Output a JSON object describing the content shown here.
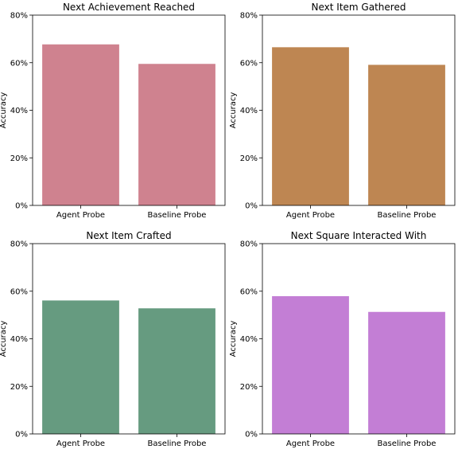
{
  "chart_data": [
    {
      "type": "bar",
      "title": "Next Achievement Reached",
      "ylabel": "Accuracy",
      "categories": [
        "Agent Probe",
        "Baseline Probe"
      ],
      "values": [
        67.7,
        59.5
      ],
      "ylim": [
        0,
        80
      ],
      "yticks": [
        "0%",
        "20%",
        "40%",
        "60%",
        "80%"
      ],
      "color": "#cf828f"
    },
    {
      "type": "bar",
      "title": "Next Item Gathered",
      "ylabel": "Accuracy",
      "categories": [
        "Agent Probe",
        "Baseline Probe"
      ],
      "values": [
        66.5,
        59.1
      ],
      "ylim": [
        0,
        80
      ],
      "yticks": [
        "0%",
        "20%",
        "40%",
        "60%",
        "80%"
      ],
      "color": "#be8652"
    },
    {
      "type": "bar",
      "title": "Next Item Crafted",
      "ylabel": "Accuracy",
      "categories": [
        "Agent Probe",
        "Baseline Probe"
      ],
      "values": [
        56.1,
        52.8
      ],
      "ylim": [
        0,
        80
      ],
      "yticks": [
        "0%",
        "20%",
        "40%",
        "60%",
        "80%"
      ],
      "color": "#669b80"
    },
    {
      "type": "bar",
      "title": "Next Square Interacted With",
      "ylabel": "Accuracy",
      "categories": [
        "Agent Probe",
        "Baseline Probe"
      ],
      "values": [
        57.9,
        51.3
      ],
      "ylim": [
        0,
        80
      ],
      "yticks": [
        "0%",
        "20%",
        "40%",
        "60%",
        "80%"
      ],
      "color": "#c37ed5"
    }
  ]
}
